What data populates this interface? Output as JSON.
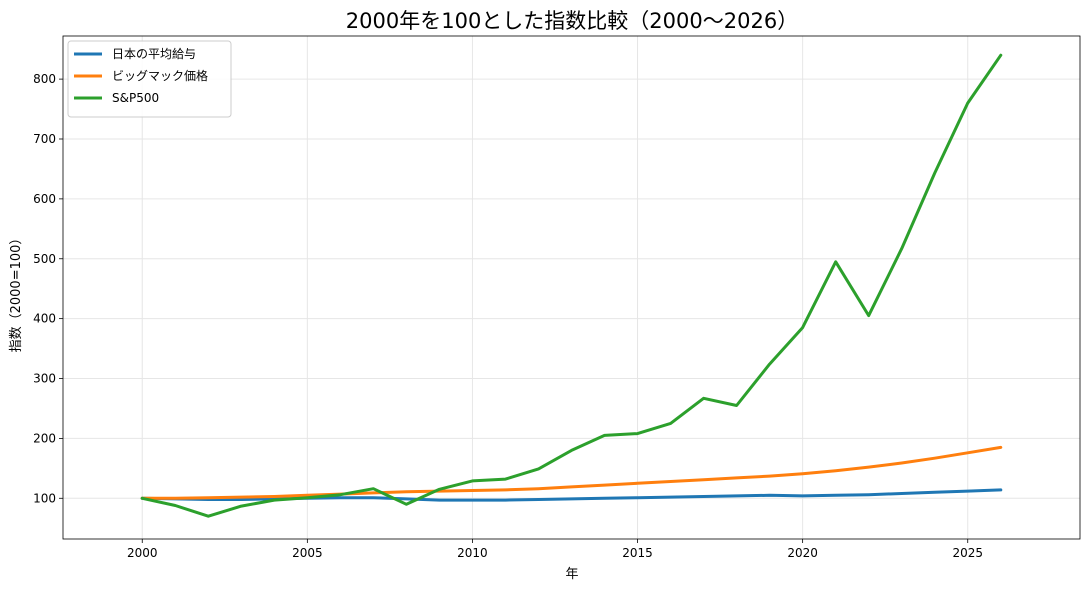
{
  "chart_data": {
    "type": "line",
    "title": "2000年を100とした指数比較（2000〜2026）",
    "xlabel": "年",
    "ylabel": "指数（2000=100）",
    "xlim": [
      1997.6,
      2028.4
    ],
    "ylim": [
      32,
      872
    ],
    "x_ticks": [
      2000,
      2005,
      2010,
      2015,
      2020,
      2025
    ],
    "y_ticks": [
      100,
      200,
      300,
      400,
      500,
      600,
      700,
      800
    ],
    "grid": true,
    "legend_position": "upper-left",
    "x": [
      2000,
      2001,
      2002,
      2003,
      2004,
      2005,
      2006,
      2007,
      2008,
      2009,
      2010,
      2011,
      2012,
      2013,
      2014,
      2015,
      2016,
      2017,
      2018,
      2019,
      2020,
      2021,
      2022,
      2023,
      2024,
      2025,
      2026
    ],
    "series": [
      {
        "name": "日本の平均給与",
        "color": "#1f77b4",
        "values": [
          100,
          99,
          98,
          98,
          99,
          100,
          101,
          101,
          99,
          97,
          97,
          97,
          98,
          99,
          100,
          101,
          102,
          103,
          104,
          105,
          104,
          105,
          106,
          108,
          110,
          112,
          114
        ]
      },
      {
        "name": "ビッグマック価格",
        "color": "#ff7f0e",
        "values": [
          100,
          100,
          101,
          102,
          103,
          105,
          107,
          109,
          111,
          112,
          113,
          114,
          116,
          119,
          122,
          125,
          128,
          131,
          134,
          137,
          141,
          146,
          152,
          159,
          167,
          176,
          185
        ]
      },
      {
        "name": "S&P500",
        "color": "#2ca02c",
        "values": [
          100,
          88,
          70,
          87,
          97,
          101,
          106,
          116,
          90,
          115,
          129,
          132,
          149,
          180,
          205,
          208,
          225,
          267,
          255,
          324,
          385,
          495,
          405,
          517,
          643,
          760,
          840
        ]
      }
    ]
  }
}
